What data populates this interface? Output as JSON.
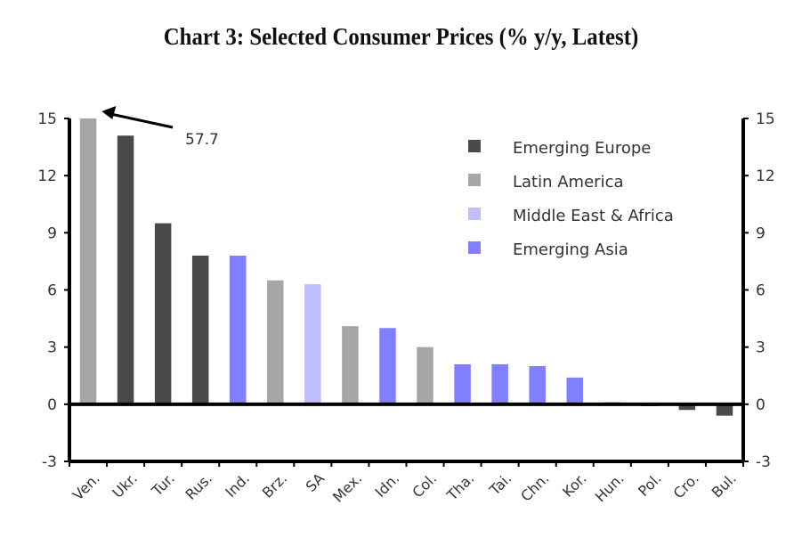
{
  "chart_data": {
    "type": "bar",
    "title": "Chart 3: Selected Consumer Prices (% y/y, Latest)",
    "xlabel": "",
    "ylabel": "",
    "ylim": [
      -3,
      15
    ],
    "yticks": [
      -3,
      0,
      3,
      6,
      9,
      12,
      15
    ],
    "grid": false,
    "legend_position": "top-right",
    "categories": [
      "Ven.",
      "Ukr.",
      "Tur.",
      "Rus.",
      "Ind.",
      "Brz.",
      "SA",
      "Mex.",
      "Idn.",
      "Col.",
      "Tha.",
      "Tai.",
      "Chn.",
      "Kor.",
      "Hun.",
      "Pol.",
      "Cro.",
      "Bul."
    ],
    "values": [
      57.7,
      14.1,
      9.5,
      7.8,
      7.8,
      6.5,
      6.3,
      4.1,
      4.0,
      3.0,
      2.1,
      2.1,
      2.0,
      1.4,
      0.1,
      -0.1,
      -0.3,
      -0.6
    ],
    "groups": [
      "Latin America",
      "Emerging Europe",
      "Emerging Europe",
      "Emerging Europe",
      "Emerging Asia",
      "Latin America",
      "Middle East & Africa",
      "Latin America",
      "Emerging Asia",
      "Latin America",
      "Emerging Asia",
      "Emerging Asia",
      "Emerging Asia",
      "Emerging Asia",
      "Emerging Europe",
      "Emerging Europe",
      "Emerging Europe",
      "Emerging Europe"
    ],
    "series": [
      {
        "name": "Emerging Europe",
        "color": "#4a4a4a"
      },
      {
        "name": "Latin America",
        "color": "#a6a6a6"
      },
      {
        "name": "Middle East & Africa",
        "color": "#bfbfff"
      },
      {
        "name": "Emerging Asia",
        "color": "#7f7fff"
      }
    ],
    "annotations": [
      {
        "text": "57.7",
        "category": "Ven.",
        "note": "bar truncated at axis max; arrow points to top of bar"
      }
    ]
  }
}
